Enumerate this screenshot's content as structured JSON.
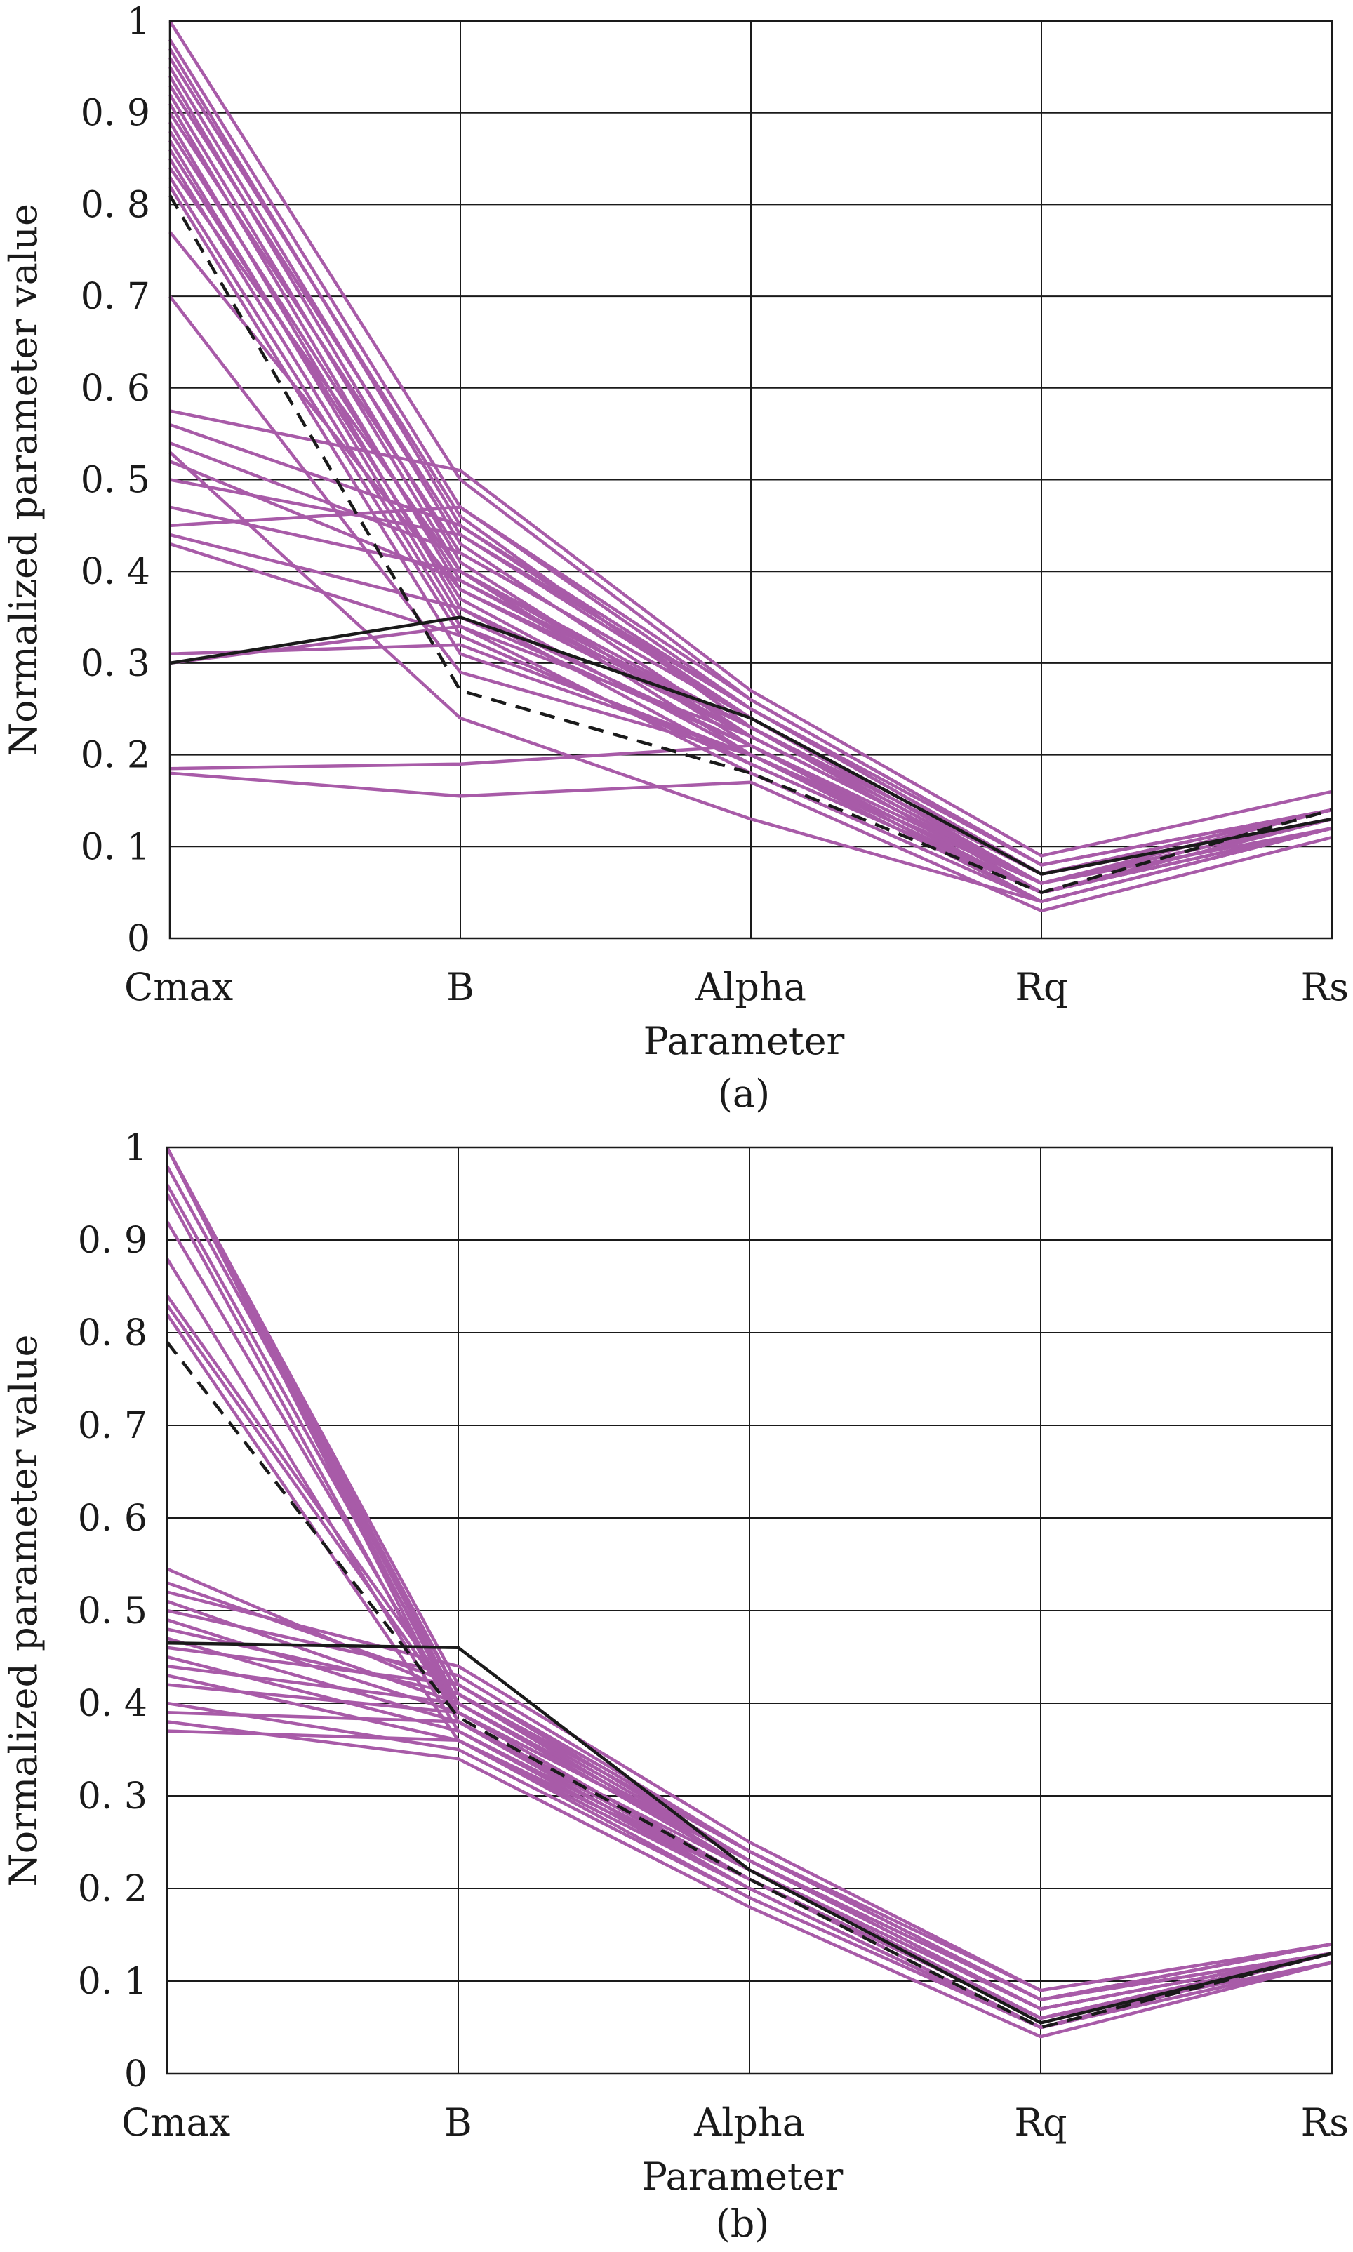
{
  "colors": {
    "trial": "#a85ba8",
    "best": "#1a1a1a"
  },
  "chart_data": [
    {
      "type": "line",
      "panel": "(a)",
      "xlabel": "Parameter",
      "ylabel": "Normalized parameter value",
      "ylim": [
        0,
        1
      ],
      "yticks": [
        "0",
        "0. 1",
        "0. 2",
        "0. 3",
        "0. 4",
        "0. 5",
        "0. 6",
        "0. 7",
        "0. 8",
        "0. 9",
        "1"
      ],
      "categories": [
        "Cmax",
        "B",
        "Alpha",
        "Rq",
        "Rs"
      ],
      "grid": true,
      "trials": [
        [
          1.0,
          0.5,
          0.26,
          0.08,
          0.14
        ],
        [
          0.98,
          0.47,
          0.25,
          0.07,
          0.13
        ],
        [
          0.97,
          0.45,
          0.24,
          0.06,
          0.12
        ],
        [
          0.96,
          0.46,
          0.23,
          0.05,
          0.13
        ],
        [
          0.95,
          0.43,
          0.22,
          0.06,
          0.14
        ],
        [
          0.94,
          0.41,
          0.21,
          0.05,
          0.12
        ],
        [
          0.93,
          0.44,
          0.25,
          0.07,
          0.13
        ],
        [
          0.92,
          0.4,
          0.2,
          0.04,
          0.12
        ],
        [
          0.91,
          0.38,
          0.22,
          0.06,
          0.13
        ],
        [
          0.9,
          0.42,
          0.24,
          0.07,
          0.14
        ],
        [
          0.89,
          0.36,
          0.19,
          0.05,
          0.12
        ],
        [
          0.88,
          0.39,
          0.23,
          0.06,
          0.13
        ],
        [
          0.87,
          0.35,
          0.21,
          0.04,
          0.12
        ],
        [
          0.86,
          0.37,
          0.2,
          0.05,
          0.13
        ],
        [
          0.85,
          0.34,
          0.18,
          0.04,
          0.12
        ],
        [
          0.84,
          0.4,
          0.22,
          0.06,
          0.13
        ],
        [
          0.83,
          0.33,
          0.19,
          0.05,
          0.12
        ],
        [
          0.82,
          0.31,
          0.2,
          0.06,
          0.13
        ],
        [
          0.77,
          0.38,
          0.23,
          0.07,
          0.14
        ],
        [
          0.7,
          0.29,
          0.2,
          0.05,
          0.12
        ],
        [
          0.575,
          0.51,
          0.27,
          0.09,
          0.16
        ],
        [
          0.56,
          0.45,
          0.25,
          0.08,
          0.14
        ],
        [
          0.54,
          0.42,
          0.24,
          0.07,
          0.13
        ],
        [
          0.53,
          0.24,
          0.13,
          0.04,
          0.12
        ],
        [
          0.52,
          0.39,
          0.22,
          0.06,
          0.13
        ],
        [
          0.5,
          0.44,
          0.24,
          0.07,
          0.14
        ],
        [
          0.47,
          0.4,
          0.23,
          0.06,
          0.13
        ],
        [
          0.45,
          0.47,
          0.26,
          0.08,
          0.14
        ],
        [
          0.44,
          0.36,
          0.21,
          0.05,
          0.12
        ],
        [
          0.43,
          0.33,
          0.19,
          0.05,
          0.13
        ],
        [
          0.31,
          0.32,
          0.2,
          0.06,
          0.13
        ],
        [
          0.3,
          0.34,
          0.22,
          0.06,
          0.13
        ],
        [
          0.185,
          0.19,
          0.21,
          0.06,
          0.13
        ],
        [
          0.18,
          0.155,
          0.17,
          0.03,
          0.11
        ]
      ],
      "best": [
        {
          "style": "solid",
          "values": [
            0.3,
            0.35,
            0.24,
            0.07,
            0.13
          ]
        },
        {
          "style": "dashed",
          "values": [
            0.81,
            0.27,
            0.18,
            0.05,
            0.14
          ]
        }
      ]
    },
    {
      "type": "line",
      "panel": "(b)",
      "xlabel": "Parameter",
      "ylabel": "Normalized parameter value",
      "ylim": [
        0,
        1
      ],
      "yticks": [
        "0",
        "0. 1",
        "0. 2",
        "0. 3",
        "0. 4",
        "0. 5",
        "0. 6",
        "0. 7",
        "0. 8",
        "0. 9",
        "1"
      ],
      "categories": [
        "Cmax",
        "B",
        "Alpha",
        "Rq",
        "Rs"
      ],
      "grid": true,
      "trials": [
        [
          1.0,
          0.42,
          0.24,
          0.09,
          0.14
        ],
        [
          1.0,
          0.4,
          0.23,
          0.08,
          0.13
        ],
        [
          1.0,
          0.41,
          0.22,
          0.07,
          0.13
        ],
        [
          1.0,
          0.39,
          0.23,
          0.08,
          0.14
        ],
        [
          1.0,
          0.38,
          0.21,
          0.06,
          0.12
        ],
        [
          0.98,
          0.41,
          0.24,
          0.08,
          0.13
        ],
        [
          0.96,
          0.4,
          0.22,
          0.07,
          0.13
        ],
        [
          0.95,
          0.38,
          0.21,
          0.06,
          0.13
        ],
        [
          0.92,
          0.39,
          0.23,
          0.08,
          0.14
        ],
        [
          0.88,
          0.37,
          0.2,
          0.05,
          0.12
        ],
        [
          0.84,
          0.4,
          0.22,
          0.07,
          0.13
        ],
        [
          0.83,
          0.39,
          0.21,
          0.06,
          0.13
        ],
        [
          0.82,
          0.36,
          0.19,
          0.05,
          0.13
        ],
        [
          0.545,
          0.41,
          0.24,
          0.08,
          0.14
        ],
        [
          0.53,
          0.42,
          0.23,
          0.07,
          0.13
        ],
        [
          0.52,
          0.44,
          0.25,
          0.09,
          0.14
        ],
        [
          0.51,
          0.4,
          0.22,
          0.06,
          0.13
        ],
        [
          0.5,
          0.43,
          0.24,
          0.08,
          0.13
        ],
        [
          0.49,
          0.39,
          0.21,
          0.05,
          0.12
        ],
        [
          0.48,
          0.41,
          0.23,
          0.07,
          0.13
        ],
        [
          0.47,
          0.38,
          0.2,
          0.05,
          0.13
        ],
        [
          0.46,
          0.42,
          0.24,
          0.08,
          0.14
        ],
        [
          0.45,
          0.37,
          0.21,
          0.06,
          0.13
        ],
        [
          0.44,
          0.4,
          0.22,
          0.07,
          0.13
        ],
        [
          0.43,
          0.36,
          0.2,
          0.05,
          0.12
        ],
        [
          0.42,
          0.39,
          0.23,
          0.07,
          0.13
        ],
        [
          0.4,
          0.35,
          0.19,
          0.05,
          0.13
        ],
        [
          0.39,
          0.38,
          0.22,
          0.06,
          0.13
        ],
        [
          0.38,
          0.34,
          0.18,
          0.04,
          0.12
        ],
        [
          0.37,
          0.36,
          0.21,
          0.06,
          0.13
        ]
      ],
      "best": [
        {
          "style": "solid",
          "values": [
            0.465,
            0.46,
            0.22,
            0.055,
            0.13
          ]
        },
        {
          "style": "dashed",
          "values": [
            0.79,
            0.385,
            0.21,
            0.05,
            0.13
          ]
        }
      ]
    }
  ]
}
